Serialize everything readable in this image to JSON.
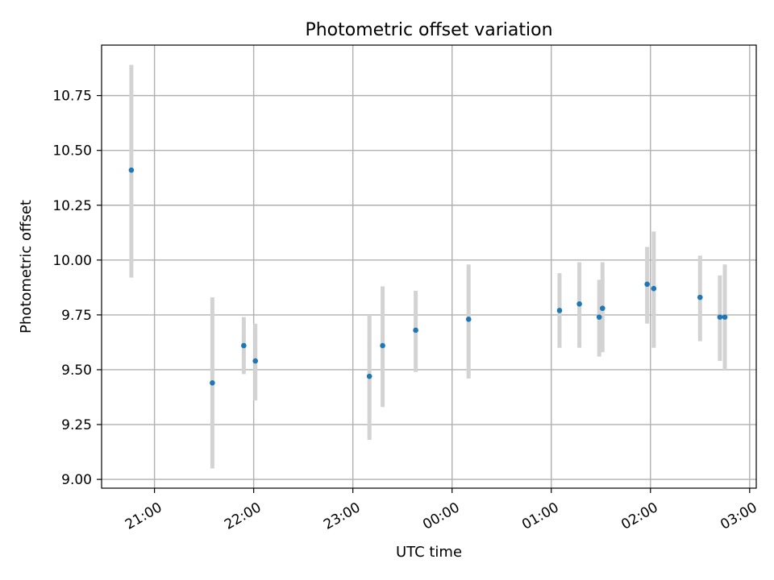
{
  "chart_data": {
    "type": "scatter",
    "title": "Photometric offset variation",
    "xlabel": "UTC time",
    "ylabel": "Photometric offset",
    "grid": true,
    "legend": "none",
    "colors": {
      "point": "#1f77b4",
      "errorbar": "#d3d3d3",
      "grid": "#b0b0b0",
      "axes": "#000000"
    },
    "xlim": [
      "20:28",
      "03:04"
    ],
    "ylim": [
      8.96,
      10.98
    ],
    "x_ticks": [
      "21:00",
      "22:00",
      "23:00",
      "00:00",
      "01:00",
      "02:00",
      "03:00"
    ],
    "y_ticks": [
      "9.00",
      "9.25",
      "9.50",
      "9.75",
      "10.00",
      "10.25",
      "10.50",
      "10.75"
    ],
    "points": [
      {
        "x": "20:46",
        "y": 10.41,
        "ylow": 9.92,
        "yhigh": 10.89
      },
      {
        "x": "21:35",
        "y": 9.44,
        "ylow": 9.05,
        "yhigh": 9.83
      },
      {
        "x": "21:54",
        "y": 9.61,
        "ylow": 9.48,
        "yhigh": 9.74
      },
      {
        "x": "22:01",
        "y": 9.54,
        "ylow": 9.36,
        "yhigh": 9.71
      },
      {
        "x": "23:10",
        "y": 9.47,
        "ylow": 9.18,
        "yhigh": 9.75
      },
      {
        "x": "23:18",
        "y": 9.61,
        "ylow": 9.33,
        "yhigh": 9.88
      },
      {
        "x": "23:38",
        "y": 9.68,
        "ylow": 9.49,
        "yhigh": 9.86
      },
      {
        "x": "00:10",
        "y": 9.73,
        "ylow": 9.46,
        "yhigh": 9.98
      },
      {
        "x": "01:05",
        "y": 9.77,
        "ylow": 9.6,
        "yhigh": 9.94
      },
      {
        "x": "01:17",
        "y": 9.8,
        "ylow": 9.6,
        "yhigh": 9.99
      },
      {
        "x": "01:29",
        "y": 9.74,
        "ylow": 9.56,
        "yhigh": 9.91
      },
      {
        "x": "01:31",
        "y": 9.78,
        "ylow": 9.58,
        "yhigh": 9.99
      },
      {
        "x": "01:58",
        "y": 9.89,
        "ylow": 9.71,
        "yhigh": 10.06
      },
      {
        "x": "02:02",
        "y": 9.87,
        "ylow": 9.6,
        "yhigh": 10.13
      },
      {
        "x": "02:30",
        "y": 9.83,
        "ylow": 9.63,
        "yhigh": 10.02
      },
      {
        "x": "02:42",
        "y": 9.74,
        "ylow": 9.54,
        "yhigh": 9.93
      },
      {
        "x": "02:45",
        "y": 9.74,
        "ylow": 9.5,
        "yhigh": 9.98
      }
    ]
  }
}
